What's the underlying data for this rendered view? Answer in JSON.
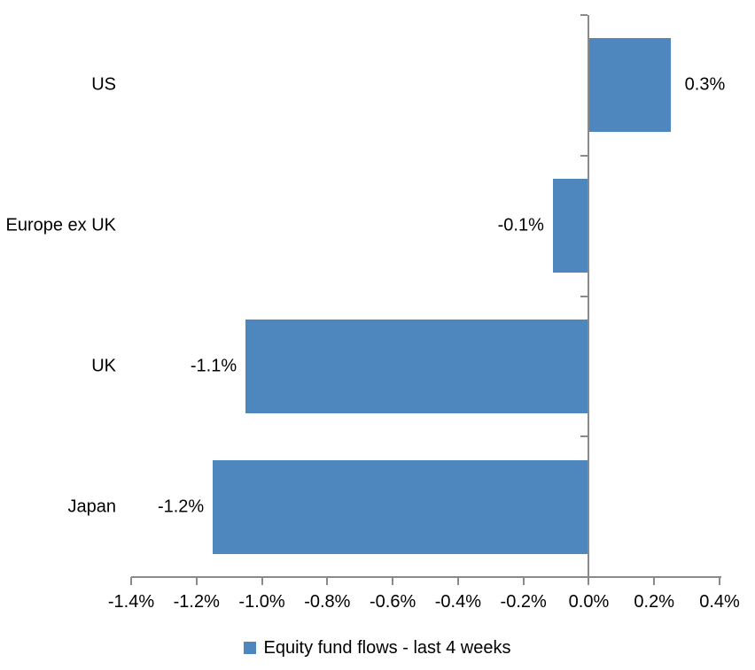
{
  "page": {
    "background_color": "#FFFFFF"
  },
  "chart_data": {
    "type": "bar",
    "orientation": "horizontal",
    "title": "",
    "categories": [
      "US",
      "Europe ex UK",
      "UK",
      "Japan"
    ],
    "values": [
      0.3,
      -0.1,
      -1.1,
      -1.2
    ],
    "value_labels": [
      "0.3%",
      "-0.1%",
      "-1.1%",
      "-1.2%"
    ],
    "plotted_values": [
      0.25,
      -0.11,
      -1.05,
      -1.15
    ],
    "unit": "%",
    "xlim": [
      -1.4,
      0.4
    ],
    "x_ticks": [
      -1.4,
      -1.2,
      -1.0,
      -0.8,
      -0.6,
      -0.4,
      -0.2,
      0.0,
      0.2,
      0.4
    ],
    "x_tick_labels": [
      "-1.4%",
      "-1.2%",
      "-1.0%",
      "-0.8%",
      "-0.6%",
      "-0.4%",
      "-0.2%",
      "0.0%",
      "0.2%",
      "0.4%"
    ],
    "grid": false,
    "series": [
      {
        "name": "Equity fund flows - last 4 weeks"
      }
    ],
    "legend": {
      "position": "bottom",
      "label": "Equity fund flows - last 4 weeks"
    },
    "colors": {
      "bar": "#4E86BE",
      "axis": "#8A8A8A",
      "text": "#000000",
      "background": "#FFFFFF"
    }
  }
}
